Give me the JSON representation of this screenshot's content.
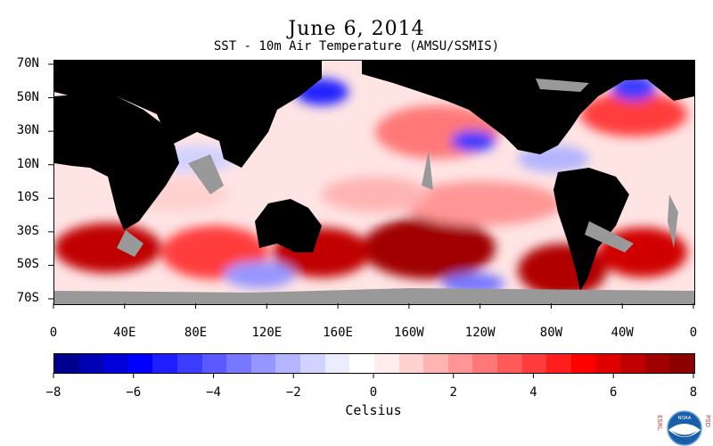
{
  "title": "June 6, 2014",
  "subtitle": "SST - 10m Air Temperature (AMSU/SSMIS)",
  "lat_labels": [
    "70N",
    "50N",
    "30N",
    "10N",
    "10S",
    "30S",
    "50S",
    "70S"
  ],
  "lon_labels": [
    "0",
    "40E",
    "80E",
    "120E",
    "160E",
    "160W",
    "120W",
    "80W",
    "40W",
    "0"
  ],
  "colorbar": {
    "title": "Celsius",
    "tick_labels": [
      "−8",
      "−6",
      "−4",
      "−2",
      "0",
      "2",
      "4",
      "6",
      "8"
    ],
    "min": -8,
    "max": 8,
    "colors": [
      "#00008c",
      "#0000b4",
      "#0000d8",
      "#0000ff",
      "#1e1eff",
      "#3c3cff",
      "#5a5aff",
      "#7878ff",
      "#9696ff",
      "#b4b4ff",
      "#d2d2ff",
      "#ececff",
      "#ffffff",
      "#ffecec",
      "#ffd2d2",
      "#ffb4b4",
      "#ff9696",
      "#ff7878",
      "#ff5a5a",
      "#ff3c3c",
      "#ff1e1e",
      "#ff0000",
      "#e00000",
      "#c00000",
      "#a00000",
      "#8c0000"
    ]
  },
  "map_colors": {
    "land": "#000000",
    "missing": "#999999"
  },
  "logo": {
    "left_text": "ESRL",
    "right_text": "PSD",
    "agency": "NOAA"
  }
}
